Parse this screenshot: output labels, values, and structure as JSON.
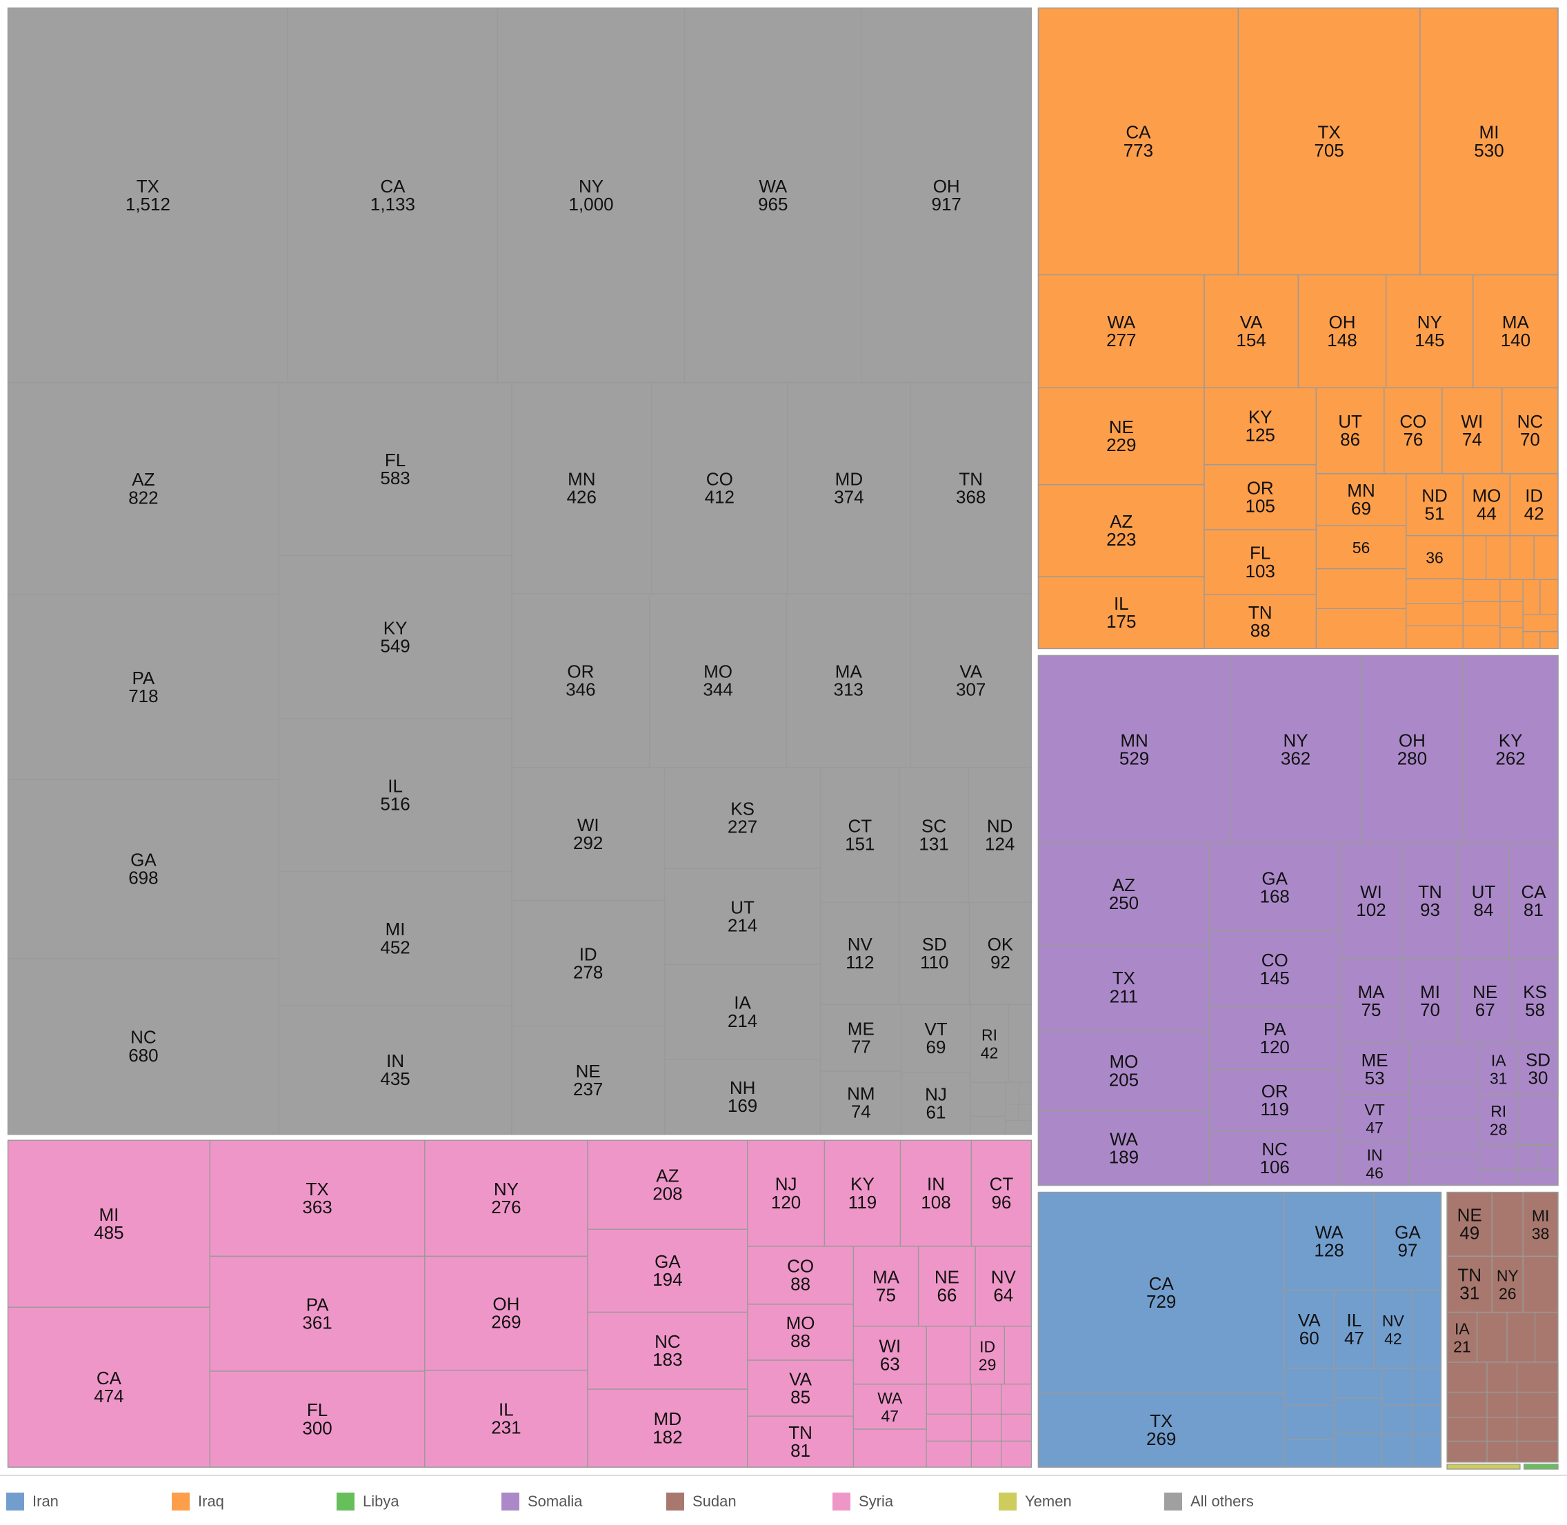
{
  "chart_data": {
    "type": "treemap",
    "title": "",
    "groups": [
      {
        "name": "All others",
        "color": "#a0a0a0",
        "items": [
          {
            "label": "TX",
            "value": "1,512"
          },
          {
            "label": "CA",
            "value": "1,133"
          },
          {
            "label": "NY",
            "value": "1,000"
          },
          {
            "label": "WA",
            "value": "965"
          },
          {
            "label": "OH",
            "value": "917"
          },
          {
            "label": "AZ",
            "value": "822"
          },
          {
            "label": "PA",
            "value": "718"
          },
          {
            "label": "GA",
            "value": "698"
          },
          {
            "label": "NC",
            "value": "680"
          },
          {
            "label": "FL",
            "value": "583"
          },
          {
            "label": "KY",
            "value": "549"
          },
          {
            "label": "IL",
            "value": "516"
          },
          {
            "label": "MI",
            "value": "452"
          },
          {
            "label": "IN",
            "value": "435"
          },
          {
            "label": "MN",
            "value": "426"
          },
          {
            "label": "CO",
            "value": "412"
          },
          {
            "label": "MD",
            "value": "374"
          },
          {
            "label": "TN",
            "value": "368"
          },
          {
            "label": "OR",
            "value": "346"
          },
          {
            "label": "MO",
            "value": "344"
          },
          {
            "label": "MA",
            "value": "313"
          },
          {
            "label": "VA",
            "value": "307"
          },
          {
            "label": "WI",
            "value": "292"
          },
          {
            "label": "KS",
            "value": "227"
          },
          {
            "label": "UT",
            "value": "214"
          },
          {
            "label": "IA",
            "value": "214"
          },
          {
            "label": "NH",
            "value": "169"
          },
          {
            "label": "ID",
            "value": "278"
          },
          {
            "label": "NE",
            "value": "237"
          },
          {
            "label": "CT",
            "value": "151"
          },
          {
            "label": "SC",
            "value": "131"
          },
          {
            "label": "ND",
            "value": "124"
          },
          {
            "label": "NV",
            "value": "112"
          },
          {
            "label": "SD",
            "value": "110"
          },
          {
            "label": "OK",
            "value": "92"
          },
          {
            "label": "ME",
            "value": "77"
          },
          {
            "label": "VT",
            "value": "69"
          },
          {
            "label": "RI",
            "value": "42"
          },
          {
            "label": "NM",
            "value": "74"
          },
          {
            "label": "NJ",
            "value": "61"
          }
        ]
      },
      {
        "name": "Iraq",
        "color": "#fd9e4b",
        "items": [
          {
            "label": "CA",
            "value": "773"
          },
          {
            "label": "TX",
            "value": "705"
          },
          {
            "label": "MI",
            "value": "530"
          },
          {
            "label": "WA",
            "value": "277"
          },
          {
            "label": "VA",
            "value": "154"
          },
          {
            "label": "OH",
            "value": "148"
          },
          {
            "label": "NY",
            "value": "145"
          },
          {
            "label": "MA",
            "value": "140"
          },
          {
            "label": "NE",
            "value": "229"
          },
          {
            "label": "AZ",
            "value": "223"
          },
          {
            "label": "IL",
            "value": "175"
          },
          {
            "label": "KY",
            "value": "125"
          },
          {
            "label": "OR",
            "value": "105"
          },
          {
            "label": "FL",
            "value": "103"
          },
          {
            "label": "TN",
            "value": "88"
          },
          {
            "label": "UT",
            "value": "86"
          },
          {
            "label": "CO",
            "value": "76"
          },
          {
            "label": "WI",
            "value": "74"
          },
          {
            "label": "NC",
            "value": "70"
          },
          {
            "label": "MN",
            "value": "69"
          },
          {
            "label": "ND",
            "value": "51"
          },
          {
            "label": "MO",
            "value": "44"
          },
          {
            "label": "ID",
            "value": "42"
          },
          {
            "label": "",
            "value": "56"
          },
          {
            "label": "",
            "value": "36"
          }
        ]
      },
      {
        "name": "Somalia",
        "color": "#ab89c9",
        "items": [
          {
            "label": "MN",
            "value": "529"
          },
          {
            "label": "NY",
            "value": "362"
          },
          {
            "label": "OH",
            "value": "280"
          },
          {
            "label": "KY",
            "value": "262"
          },
          {
            "label": "AZ",
            "value": "250"
          },
          {
            "label": "TX",
            "value": "211"
          },
          {
            "label": "MO",
            "value": "205"
          },
          {
            "label": "WA",
            "value": "189"
          },
          {
            "label": "GA",
            "value": "168"
          },
          {
            "label": "CO",
            "value": "145"
          },
          {
            "label": "PA",
            "value": "120"
          },
          {
            "label": "OR",
            "value": "119"
          },
          {
            "label": "NC",
            "value": "106"
          },
          {
            "label": "WI",
            "value": "102"
          },
          {
            "label": "TN",
            "value": "93"
          },
          {
            "label": "UT",
            "value": "84"
          },
          {
            "label": "CA",
            "value": "81"
          },
          {
            "label": "MA",
            "value": "75"
          },
          {
            "label": "MI",
            "value": "70"
          },
          {
            "label": "NE",
            "value": "67"
          },
          {
            "label": "KS",
            "value": "58"
          },
          {
            "label": "ME",
            "value": "53"
          },
          {
            "label": "VT",
            "value": "47"
          },
          {
            "label": "IN",
            "value": "46"
          },
          {
            "label": "IA",
            "value": "31"
          },
          {
            "label": "SD",
            "value": "30"
          },
          {
            "label": "RI",
            "value": "28"
          }
        ]
      },
      {
        "name": "Syria",
        "color": "#ef96c8",
        "items": [
          {
            "label": "MI",
            "value": "485"
          },
          {
            "label": "CA",
            "value": "474"
          },
          {
            "label": "TX",
            "value": "363"
          },
          {
            "label": "PA",
            "value": "361"
          },
          {
            "label": "FL",
            "value": "300"
          },
          {
            "label": "NY",
            "value": "276"
          },
          {
            "label": "OH",
            "value": "269"
          },
          {
            "label": "IL",
            "value": "231"
          },
          {
            "label": "AZ",
            "value": "208"
          },
          {
            "label": "GA",
            "value": "194"
          },
          {
            "label": "NC",
            "value": "183"
          },
          {
            "label": "MD",
            "value": "182"
          },
          {
            "label": "NJ",
            "value": "120"
          },
          {
            "label": "KY",
            "value": "119"
          },
          {
            "label": "IN",
            "value": "108"
          },
          {
            "label": "CT",
            "value": "96"
          },
          {
            "label": "CO",
            "value": "88"
          },
          {
            "label": "MO",
            "value": "88"
          },
          {
            "label": "VA",
            "value": "85"
          },
          {
            "label": "TN",
            "value": "81"
          },
          {
            "label": "MA",
            "value": "75"
          },
          {
            "label": "NE",
            "value": "66"
          },
          {
            "label": "NV",
            "value": "64"
          },
          {
            "label": "WI",
            "value": "63"
          },
          {
            "label": "ID",
            "value": "29"
          },
          {
            "label": "WA",
            "value": "47"
          }
        ]
      },
      {
        "name": "Iran",
        "color": "#729ece",
        "items": [
          {
            "label": "CA",
            "value": "729"
          },
          {
            "label": "TX",
            "value": "269"
          },
          {
            "label": "WA",
            "value": "128"
          },
          {
            "label": "GA",
            "value": "97"
          },
          {
            "label": "VA",
            "value": "60"
          },
          {
            "label": "IL",
            "value": "47"
          },
          {
            "label": "NV",
            "value": "42"
          }
        ]
      },
      {
        "name": "Sudan",
        "color": "#a8786e",
        "items": [
          {
            "label": "NE",
            "value": "49"
          },
          {
            "label": "MI",
            "value": "38"
          },
          {
            "label": "TN",
            "value": "31"
          },
          {
            "label": "NY",
            "value": "26"
          },
          {
            "label": "IA",
            "value": "21"
          }
        ]
      },
      {
        "name": "Yemen",
        "color": "#cdcc5d",
        "items": []
      },
      {
        "name": "Libya",
        "color": "#67bf5c",
        "items": []
      }
    ],
    "legend": {
      "position": "bottom",
      "entries": [
        {
          "name": "Iran",
          "color": "#729ece"
        },
        {
          "name": "Iraq",
          "color": "#fd9e4b"
        },
        {
          "name": "Libya",
          "color": "#67bf5c"
        },
        {
          "name": "Somalia",
          "color": "#ab89c9"
        },
        {
          "name": "Sudan",
          "color": "#a8786e"
        },
        {
          "name": "Syria",
          "color": "#ef96c8"
        },
        {
          "name": "Yemen",
          "color": "#cdcc5d"
        },
        {
          "name": "All others",
          "color": "#a0a0a0"
        }
      ]
    }
  }
}
